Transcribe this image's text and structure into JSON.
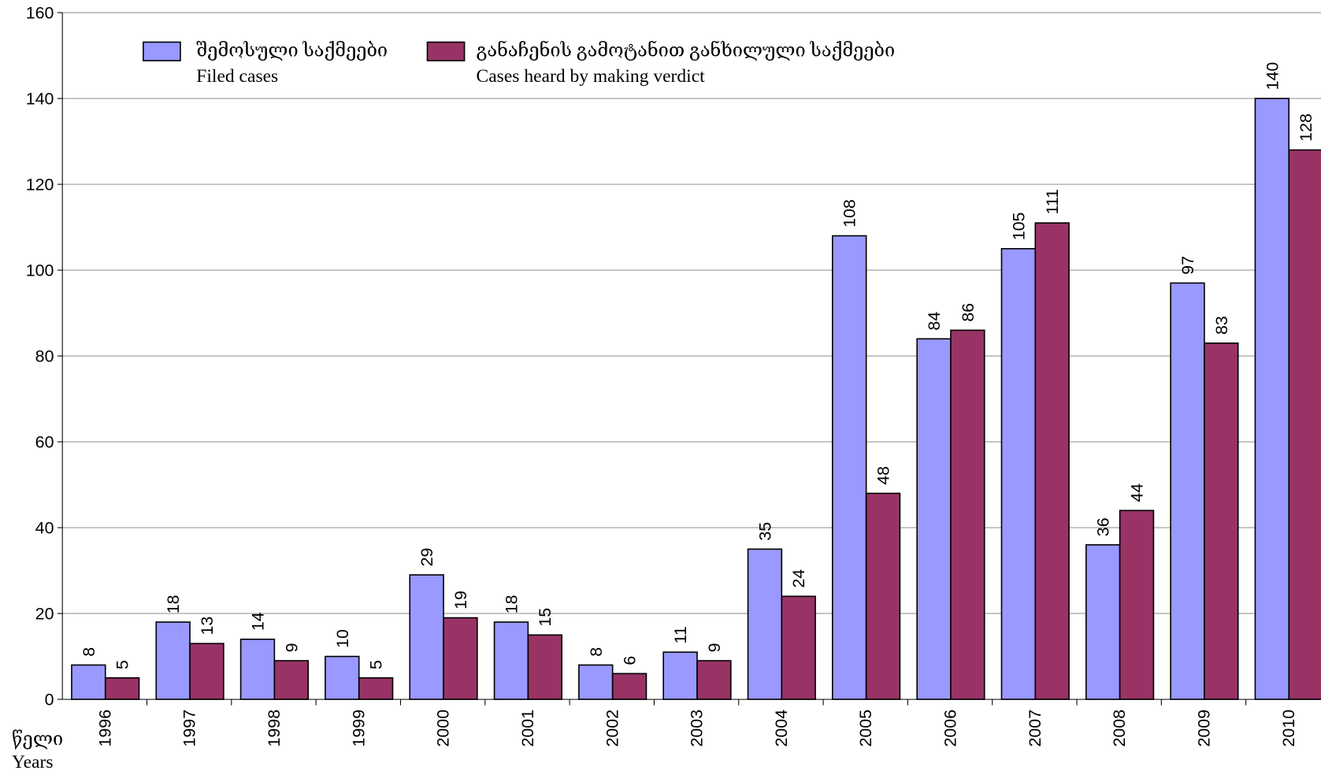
{
  "chart_data": {
    "type": "bar",
    "x_label": "წელი",
    "x_label_en": "Years",
    "categories": [
      "1996",
      "1997",
      "1998",
      "1999",
      "2000",
      "2001",
      "2002",
      "2003",
      "2004",
      "2005",
      "2006",
      "2007",
      "2008",
      "2009",
      "2010"
    ],
    "series": [
      {
        "name": "შემოსული საქმეები",
        "name_en": "Filed cases",
        "color": "#9999ff",
        "values": [
          8,
          18,
          14,
          10,
          29,
          18,
          8,
          11,
          35,
          108,
          84,
          105,
          36,
          97,
          140
        ]
      },
      {
        "name": "განაჩენის გამოტანით განხილული საქმეები",
        "name_en": "Cases heard by making verdict",
        "color": "#993366",
        "values": [
          5,
          13,
          9,
          5,
          19,
          15,
          6,
          9,
          24,
          48,
          86,
          111,
          44,
          83,
          128
        ]
      }
    ],
    "ylim": [
      0,
      160
    ],
    "yticks": [
      0,
      20,
      40,
      60,
      80,
      100,
      120,
      140,
      160
    ],
    "grid": true
  }
}
